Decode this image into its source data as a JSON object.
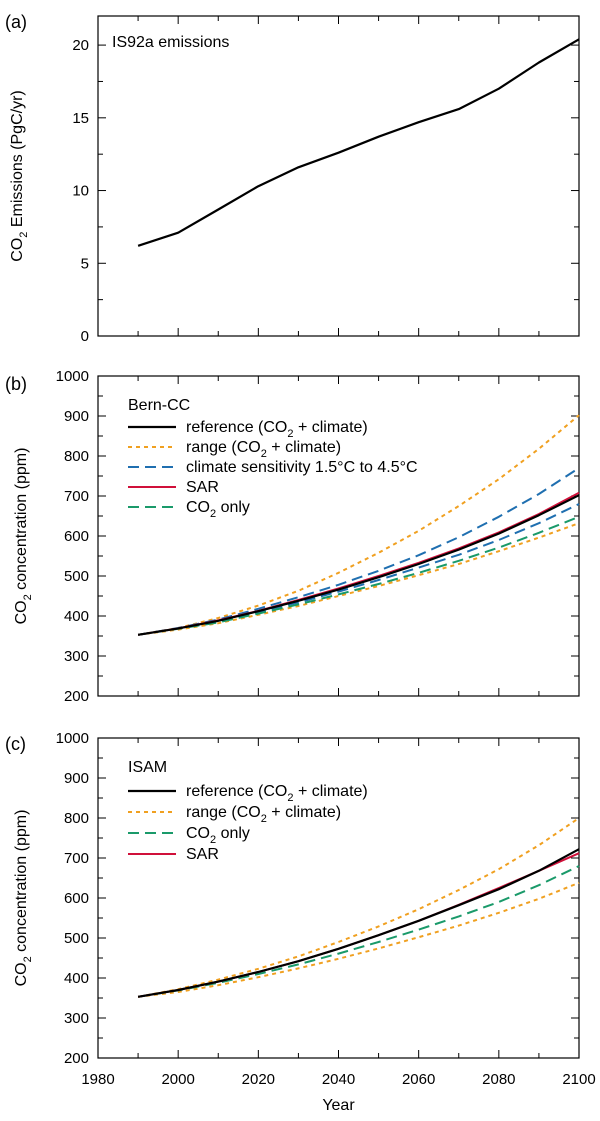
{
  "chart_data": [
    {
      "panel": "(a)",
      "type": "line",
      "title": "IS92a emissions",
      "ylabel_main": "CO",
      "ylabel_sub": "2",
      "ylabel_rest": " Emissions (PgC/yr)",
      "xlim": [
        1980,
        2100
      ],
      "ylim": [
        0,
        22
      ],
      "xticks": [
        1980,
        2000,
        2020,
        2040,
        2060,
        2080,
        2100
      ],
      "yticks": [
        0,
        5,
        10,
        15,
        20
      ],
      "series": [
        {
          "style": "solid",
          "color": "#000000",
          "x": [
            1990,
            2000,
            2010,
            2020,
            2030,
            2040,
            2050,
            2060,
            2070,
            2080,
            2090,
            2100
          ],
          "y": [
            6.2,
            7.1,
            8.7,
            10.3,
            11.6,
            12.6,
            13.7,
            14.7,
            15.6,
            17.0,
            18.8,
            20.4
          ]
        }
      ]
    },
    {
      "panel": "(b)",
      "type": "line",
      "title": "Bern-CC",
      "ylabel_main": "CO",
      "ylabel_sub": "2",
      "ylabel_rest": "  concentration (ppm)",
      "xlim": [
        1980,
        2100
      ],
      "ylim": [
        200,
        1000
      ],
      "xticks": [
        1980,
        2000,
        2020,
        2040,
        2060,
        2080,
        2100
      ],
      "yticks": [
        200,
        300,
        400,
        500,
        600,
        700,
        800,
        900,
        1000
      ],
      "legend": [
        {
          "pre": "reference (CO",
          "sub": "2",
          "post": " + climate)",
          "style": "solid",
          "color": "#000000"
        },
        {
          "pre": "range (CO",
          "sub": "2",
          "post": " + climate)",
          "style": "dotted",
          "color": "#f0a020"
        },
        {
          "pre": "climate sensitivity 1.5°C to 4.5°C",
          "sub": "",
          "post": "",
          "style": "dashed",
          "color": "#1f6fb0"
        },
        {
          "pre": "SAR",
          "sub": "",
          "post": "",
          "style": "solid",
          "color": "#d0103a"
        },
        {
          "pre": "CO",
          "sub": "2",
          "post": " only",
          "style": "dashed",
          "color": "#1a9a6a"
        }
      ],
      "series": [
        {
          "style": "dotted",
          "color": "#f0a020",
          "x": [
            1990,
            2000,
            2010,
            2020,
            2030,
            2040,
            2050,
            2060,
            2070,
            2080,
            2090,
            2100
          ],
          "y": [
            353,
            370,
            395,
            426,
            463,
            508,
            558,
            613,
            675,
            742,
            818,
            902
          ]
        },
        {
          "style": "dotted",
          "color": "#f0a020",
          "x": [
            1990,
            2000,
            2010,
            2020,
            2030,
            2040,
            2050,
            2060,
            2070,
            2080,
            2090,
            2100
          ],
          "y": [
            353,
            366,
            382,
            403,
            425,
            450,
            475,
            502,
            530,
            562,
            596,
            632
          ]
        },
        {
          "style": "dashed",
          "color": "#1f6fb0",
          "x": [
            1990,
            2000,
            2010,
            2020,
            2030,
            2040,
            2050,
            2060,
            2070,
            2080,
            2090,
            2100
          ],
          "y": [
            353,
            370,
            391,
            418,
            447,
            478,
            513,
            552,
            597,
            648,
            705,
            770
          ]
        },
        {
          "style": "dashed",
          "color": "#1f6fb0",
          "x": [
            1990,
            2000,
            2010,
            2020,
            2030,
            2040,
            2050,
            2060,
            2070,
            2080,
            2090,
            2100
          ],
          "y": [
            353,
            369,
            386,
            410,
            434,
            461,
            490,
            521,
            553,
            590,
            632,
            680
          ]
        },
        {
          "style": "dashed",
          "color": "#1a9a6a",
          "x": [
            1990,
            2000,
            2010,
            2020,
            2030,
            2040,
            2050,
            2060,
            2070,
            2080,
            2090,
            2100
          ],
          "y": [
            353,
            368,
            384,
            406,
            429,
            454,
            480,
            508,
            538,
            571,
            608,
            648
          ]
        },
        {
          "style": "solid",
          "color": "#d0103a",
          "x": [
            1990,
            2000,
            2010,
            2020,
            2030,
            2040,
            2050,
            2060,
            2070,
            2080,
            2090,
            2100
          ],
          "y": [
            353,
            369,
            389,
            413,
            440,
            469,
            500,
            533,
            569,
            609,
            655,
            708
          ]
        },
        {
          "style": "solid",
          "color": "#000000",
          "x": [
            1990,
            2000,
            2010,
            2020,
            2030,
            2040,
            2050,
            2060,
            2070,
            2080,
            2090,
            2100
          ],
          "y": [
            353,
            369,
            388,
            412,
            438,
            466,
            497,
            530,
            566,
            606,
            652,
            702
          ]
        }
      ]
    },
    {
      "panel": "(c)",
      "type": "line",
      "title": "ISAM",
      "ylabel_main": "CO",
      "ylabel_sub": "2",
      "ylabel_rest": " concentration (ppm)",
      "xlabel": "Year",
      "xlim": [
        1980,
        2100
      ],
      "ylim": [
        200,
        1000
      ],
      "xticks": [
        1980,
        2000,
        2020,
        2040,
        2060,
        2080,
        2100
      ],
      "yticks": [
        200,
        300,
        400,
        500,
        600,
        700,
        800,
        900,
        1000
      ],
      "legend": [
        {
          "pre": "reference (CO",
          "sub": "2",
          "post": " + climate)",
          "style": "solid",
          "color": "#000000"
        },
        {
          "pre": "range (CO",
          "sub": "2",
          "post": " + climate)",
          "style": "dotted",
          "color": "#f0a020"
        },
        {
          "pre": "CO",
          "sub": "2",
          "post": " only",
          "style": "dashed",
          "color": "#1a9a6a"
        },
        {
          "pre": "SAR",
          "sub": "",
          "post": "",
          "style": "solid",
          "color": "#d0103a"
        }
      ],
      "series": [
        {
          "style": "dotted",
          "color": "#f0a020",
          "x": [
            1990,
            2000,
            2010,
            2020,
            2030,
            2040,
            2050,
            2060,
            2070,
            2080,
            2090,
            2100
          ],
          "y": [
            353,
            372,
            396,
            423,
            454,
            490,
            529,
            572,
            620,
            672,
            732,
            800
          ]
        },
        {
          "style": "dotted",
          "color": "#f0a020",
          "x": [
            1990,
            2000,
            2010,
            2020,
            2030,
            2040,
            2050,
            2060,
            2070,
            2080,
            2090,
            2100
          ],
          "y": [
            353,
            365,
            382,
            402,
            424,
            448,
            474,
            502,
            531,
            563,
            598,
            638
          ]
        },
        {
          "style": "dashed",
          "color": "#1a9a6a",
          "x": [
            1990,
            2000,
            2010,
            2020,
            2030,
            2040,
            2050,
            2060,
            2070,
            2080,
            2090,
            2100
          ],
          "y": [
            353,
            369,
            388,
            410,
            434,
            461,
            490,
            521,
            554,
            590,
            632,
            680
          ]
        },
        {
          "style": "solid",
          "color": "#d0103a",
          "x": [
            1990,
            2000,
            2010,
            2020,
            2030,
            2040,
            2050,
            2060,
            2070,
            2080,
            2090,
            2100
          ],
          "y": [
            353,
            370,
            391,
            415,
            442,
            473,
            507,
            543,
            583,
            625,
            668,
            712
          ]
        },
        {
          "style": "solid",
          "color": "#000000",
          "x": [
            1990,
            2000,
            2010,
            2020,
            2030,
            2040,
            2050,
            2060,
            2070,
            2080,
            2090,
            2100
          ],
          "y": [
            353,
            370,
            391,
            415,
            442,
            473,
            507,
            543,
            582,
            622,
            668,
            722
          ]
        }
      ]
    }
  ]
}
